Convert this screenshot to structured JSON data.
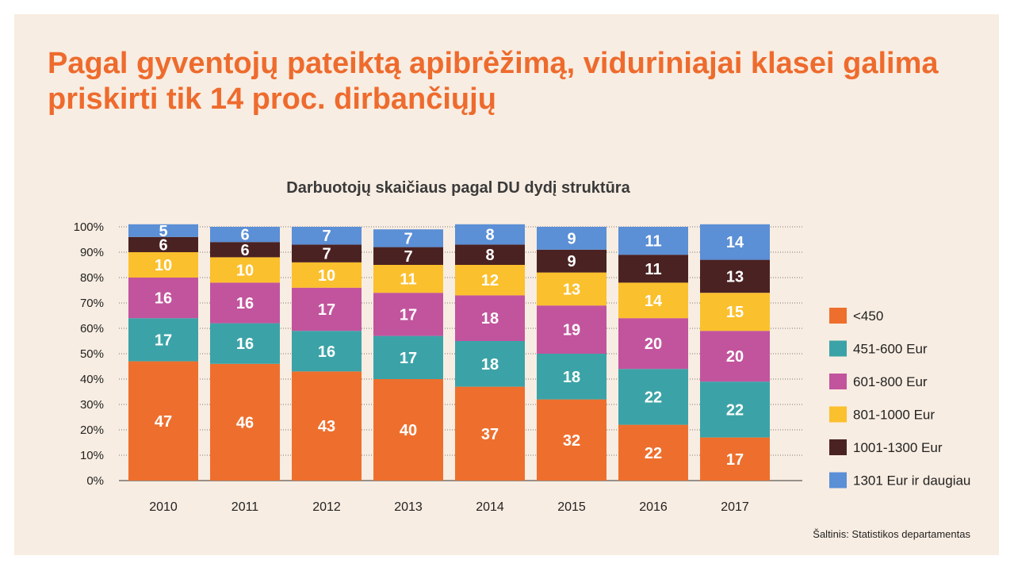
{
  "title": "Pagal gyventojų pateiktą apibrėžimą, viduriniajai klasei galima priskirti tik 14 proc. dirbančiųjų",
  "source": "Šaltinis: Statistikos departamentas",
  "chart_data": {
    "type": "bar",
    "stacked": true,
    "title": "Darbuotojų skaičiaus pagal DU dydį struktūra",
    "xlabel": "",
    "ylabel": "",
    "ylim": [
      0,
      100
    ],
    "y_ticks": [
      "0%",
      "10%",
      "20%",
      "30%",
      "40%",
      "50%",
      "60%",
      "70%",
      "80%",
      "90%",
      "100%"
    ],
    "grid": true,
    "legend_position": "right",
    "categories": [
      "2010",
      "2011",
      "2012",
      "2013",
      "2014",
      "2015",
      "2016",
      "2017"
    ],
    "series": [
      {
        "name": "<450",
        "color": "#ee6f2d",
        "values": [
          47,
          46,
          43,
          40,
          37,
          32,
          22,
          17
        ]
      },
      {
        "name": "451-600 Eur",
        "color": "#3ba3a7",
        "values": [
          17,
          16,
          16,
          17,
          18,
          18,
          22,
          22
        ]
      },
      {
        "name": "601-800 Eur",
        "color": "#c2549d",
        "values": [
          16,
          16,
          17,
          17,
          18,
          19,
          20,
          20
        ]
      },
      {
        "name": "801-1000 Eur",
        "color": "#fbc02d",
        "values": [
          10,
          10,
          10,
          11,
          12,
          13,
          14,
          15
        ]
      },
      {
        "name": "1001-1300 Eur",
        "color": "#4b2222",
        "values": [
          6,
          6,
          7,
          7,
          8,
          9,
          11,
          13
        ]
      },
      {
        "name": "1301 Eur ir daugiau",
        "color": "#5b8fd6",
        "values": [
          5,
          6,
          7,
          7,
          8,
          9,
          11,
          14
        ]
      }
    ]
  }
}
